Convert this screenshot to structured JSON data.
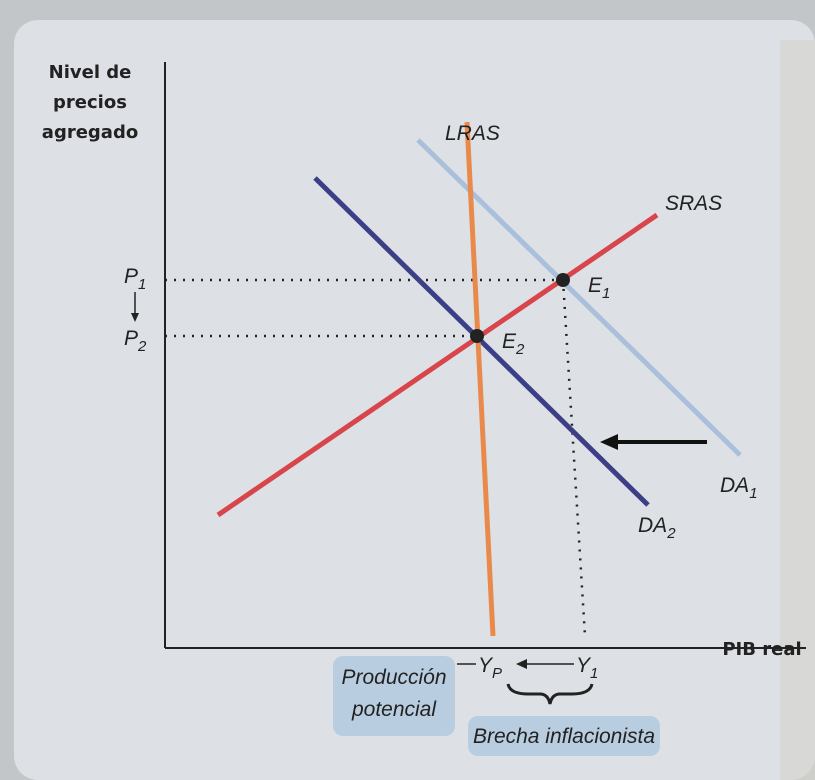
{
  "axes": {
    "y_label": [
      "Nivel de",
      "precios",
      "agregado"
    ],
    "x_label": "PIB real"
  },
  "curves": {
    "lras": "LRAS",
    "sras": "SRAS",
    "da1": {
      "main": "DA",
      "sub": "1"
    },
    "da2": {
      "main": "DA",
      "sub": "2"
    }
  },
  "prices": {
    "p1": {
      "main": "P",
      "sub": "1"
    },
    "p2": {
      "main": "P",
      "sub": "2"
    }
  },
  "equilibria": {
    "e1": {
      "main": "E",
      "sub": "1"
    },
    "e2": {
      "main": "E",
      "sub": "2"
    }
  },
  "outputs": {
    "yp": {
      "main": "Y",
      "sub": "P"
    },
    "y1": {
      "main": "Y",
      "sub": "1"
    }
  },
  "notes": {
    "potential": [
      "Producción",
      "potencial"
    ],
    "gap": "Brecha inflacionista"
  }
}
